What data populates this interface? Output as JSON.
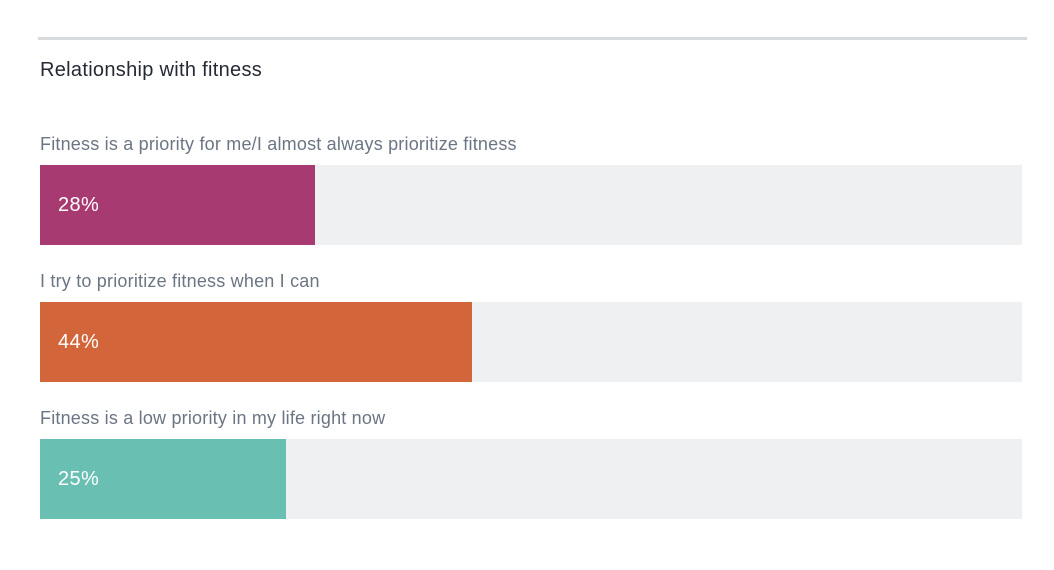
{
  "page": {
    "background": "#ffffff",
    "divider_color": "#d8dbde"
  },
  "chart_data": {
    "type": "bar",
    "orientation": "horizontal",
    "title": "Relationship with fitness",
    "categories": [
      "Fitness is a priority for me/I almost always prioritize fitness",
      "I try to prioritize fitness when I can",
      "Fitness is a low priority in my life right now"
    ],
    "values": [
      28,
      44,
      25
    ],
    "value_labels": [
      "28%",
      "44%",
      "25%"
    ],
    "value_suffix": "%",
    "bar_colors": [
      "#a83a72",
      "#d2663a",
      "#69bfb2"
    ],
    "track_color": "#eef0f2",
    "value_label_color": "#ffffff",
    "category_label_color": "#6b7584",
    "title_color": "#242933",
    "xlim": [
      0,
      100
    ],
    "grid": false,
    "legend": false,
    "data_label_position": "inside-left"
  }
}
